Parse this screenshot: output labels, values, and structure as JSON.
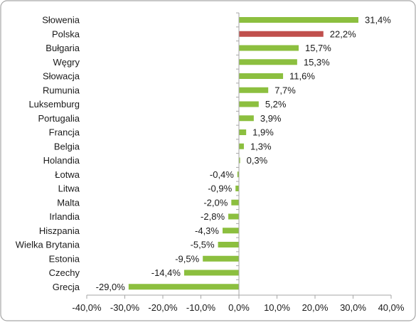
{
  "chart_data": {
    "type": "bar",
    "orientation": "horizontal",
    "title": "",
    "xlabel": "",
    "ylabel": "",
    "xlim": [
      -40,
      40
    ],
    "x_ticks": [
      -40,
      -30,
      -20,
      -10,
      0,
      10,
      20,
      30,
      40
    ],
    "x_tick_labels": [
      "-40,0%",
      "-30,0%",
      "-20,0%",
      "-10,0%",
      "0,0%",
      "10,0%",
      "20,0%",
      "30,0%",
      "40,0%"
    ],
    "grid": false,
    "legend": "none",
    "colors": {
      "default_bar": "#8cbf3f",
      "highlight_bar": "#c0504d",
      "axis": "#a6a6a6",
      "border": "#a6a6a6"
    },
    "categories": [
      "Słowenia",
      "Polska",
      "Bułgaria",
      "Węgry",
      "Słowacja",
      "Rumunia",
      "Luksemburg",
      "Portugalia",
      "Francja",
      "Belgia",
      "Holandia",
      "Łotwa",
      "Litwa",
      "Malta",
      "Irlandia",
      "Hiszpania",
      "Wielka Brytania",
      "Estonia",
      "Czechy",
      "Grecja"
    ],
    "values": [
      31.4,
      22.2,
      15.7,
      15.3,
      11.6,
      7.7,
      5.2,
      3.9,
      1.9,
      1.3,
      0.3,
      -0.4,
      -0.9,
      -2.0,
      -2.8,
      -4.3,
      -5.5,
      -9.5,
      -14.4,
      -29.0
    ],
    "labels": [
      "31,4%",
      "22,2%",
      "15,7%",
      "15,3%",
      "11,6%",
      "7,7%",
      "5,2%",
      "3,9%",
      "1,9%",
      "1,3%",
      "0,3%",
      "-0,4%",
      "-0,9%",
      "-2,0%",
      "-2,8%",
      "-4,3%",
      "-5,5%",
      "-9,5%",
      "-14,4%",
      "-29,0%"
    ],
    "highlighted": [
      "Polska"
    ]
  }
}
